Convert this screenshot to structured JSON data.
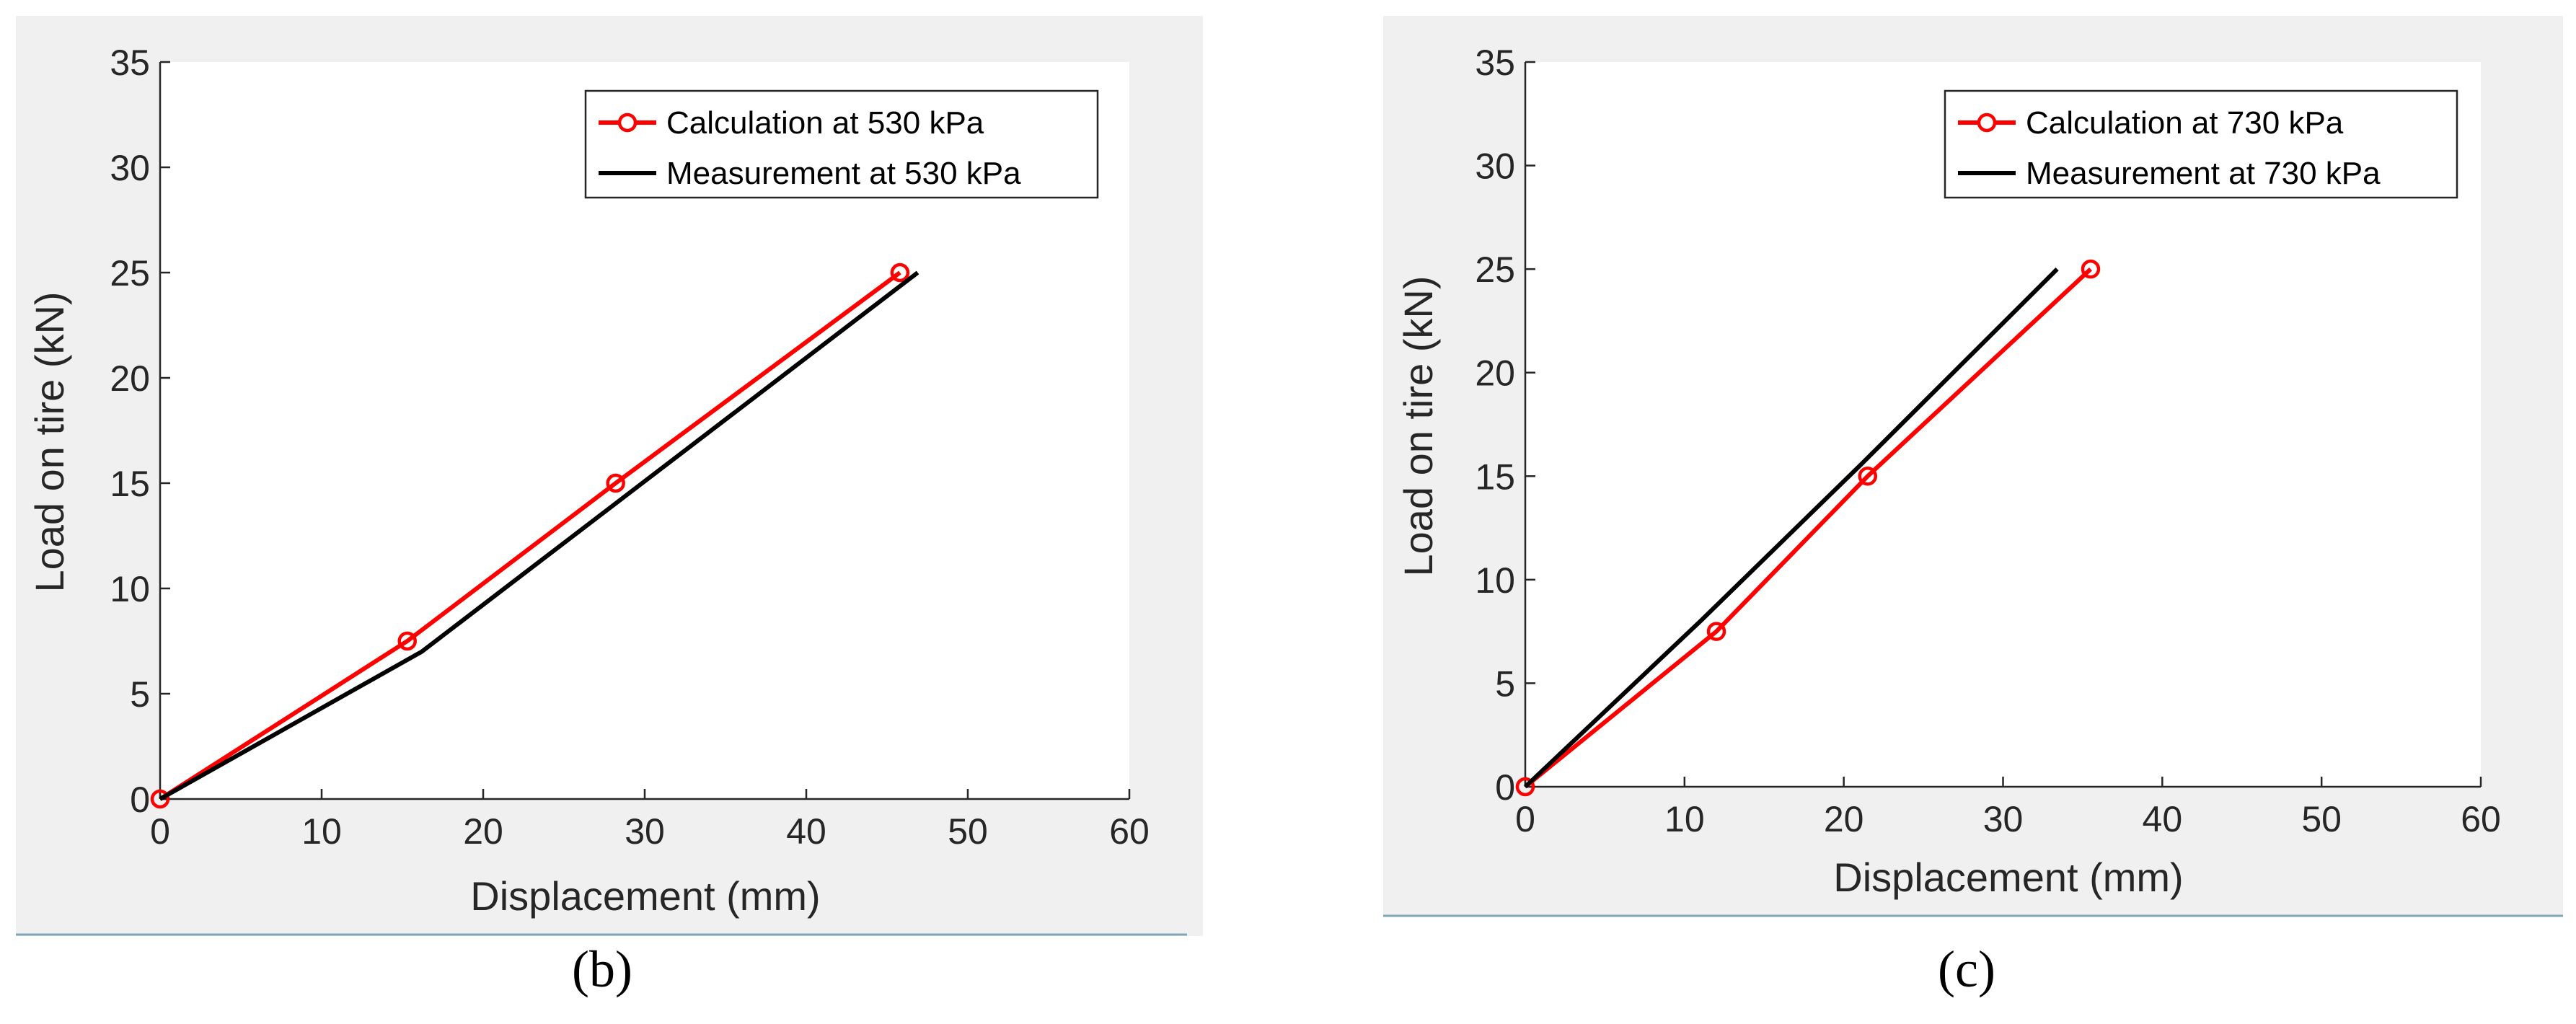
{
  "colors": {
    "calculation": "#ff0000",
    "measurement": "#000000",
    "figure_background": "#f0f0f0",
    "axes_background": "#ffffff",
    "separator": "#7fa6b4"
  },
  "chart_data": [
    {
      "type": "line",
      "panel_label": "(b)",
      "xlabel": "Displacement (mm)",
      "ylabel": "Load on tire (kN)",
      "xlim": [
        0,
        60
      ],
      "ylim": [
        0,
        35
      ],
      "xticks": [
        0,
        10,
        20,
        30,
        40,
        50,
        60
      ],
      "yticks": [
        0,
        5,
        10,
        15,
        20,
        25,
        30,
        35
      ],
      "grid": false,
      "legend_position": "top-right",
      "series": [
        {
          "name": "Calculation at 530 kPa",
          "color": "#ff0000",
          "marker": "circle",
          "points": [
            [
              0,
              0
            ],
            [
              15.3,
              7.5
            ],
            [
              28.2,
              15
            ],
            [
              45.8,
              25
            ]
          ]
        },
        {
          "name": "Measurement at 530 kPa",
          "color": "#000000",
          "marker": "none",
          "points": [
            [
              0,
              0
            ],
            [
              16.2,
              7.0
            ],
            [
              46.9,
              25
            ]
          ]
        }
      ]
    },
    {
      "type": "line",
      "panel_label": "(c)",
      "xlabel": "Displacement (mm)",
      "ylabel": "Load on tire (kN)",
      "xlim": [
        0,
        60
      ],
      "ylim": [
        0,
        35
      ],
      "xticks": [
        0,
        10,
        20,
        30,
        40,
        50,
        60
      ],
      "yticks": [
        0,
        5,
        10,
        15,
        20,
        25,
        30,
        35
      ],
      "grid": false,
      "legend_position": "top-right",
      "series": [
        {
          "name": "Calculation at 730 kPa",
          "color": "#ff0000",
          "marker": "circle",
          "points": [
            [
              0,
              0
            ],
            [
              12.0,
              7.5
            ],
            [
              21.5,
              15
            ],
            [
              35.5,
              25
            ]
          ]
        },
        {
          "name": "Measurement at 730 kPa",
          "color": "#000000",
          "marker": "none",
          "points": [
            [
              0,
              0
            ],
            [
              11.0,
              8.0
            ],
            [
              21.0,
              15.5
            ],
            [
              33.4,
              25
            ]
          ]
        }
      ]
    }
  ]
}
